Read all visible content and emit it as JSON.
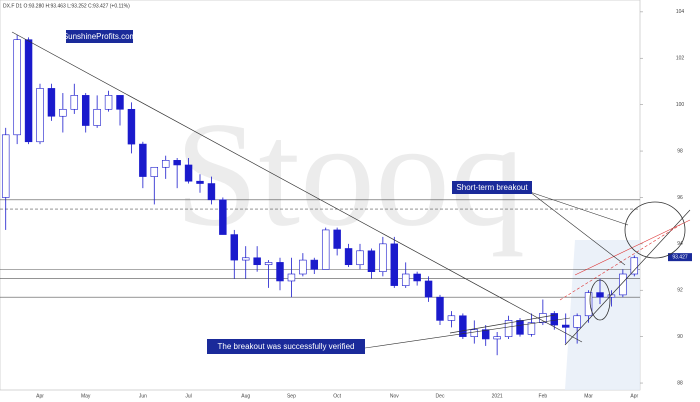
{
  "chart_data": {
    "type": "candlestick",
    "title": "DX.F D1 O:93.280 H:93.463 L:93.252 C:93.427 (+0.11%)",
    "watermark": "Stooq",
    "annotations": [
      "SunshineProfits.com",
      "Short-term breakout",
      "The breakout was successfully verified"
    ],
    "categories": [
      null,
      null,
      null,
      "Apr",
      null,
      null,
      null,
      "May",
      null,
      null,
      null,
      null,
      "Jun",
      null,
      null,
      null,
      "Jul",
      null,
      null,
      null,
      null,
      "Aug",
      null,
      null,
      null,
      "Sep",
      null,
      null,
      null,
      "Oct",
      null,
      null,
      null,
      null,
      "Nov",
      null,
      null,
      null,
      "Dec",
      null,
      null,
      null,
      null,
      "2021",
      null,
      null,
      null,
      "Feb",
      null,
      null,
      null,
      "Mar",
      null,
      null,
      null,
      "Apr"
    ],
    "open": [
      96.0,
      98.7,
      102.8,
      98.4,
      100.7,
      99.5,
      99.8,
      100.4,
      99.1,
      99.8,
      100.4,
      99.8,
      98.3,
      96.9,
      97.3,
      97.6,
      97.4,
      96.7,
      96.6,
      95.9,
      94.4,
      93.3,
      93.4,
      93.1,
      93.2,
      92.4,
      92.7,
      93.3,
      92.9,
      94.6,
      93.8,
      93.1,
      93.7,
      92.8,
      94.0,
      92.2,
      92.7,
      92.4,
      91.7,
      90.7,
      90.9,
      90.0,
      90.3,
      89.9,
      90.0,
      90.7,
      90.1,
      90.6,
      91.0,
      90.5,
      90.4,
      90.9,
      91.9,
      91.7,
      91.8,
      92.7
    ],
    "high": [
      99.0,
      103.0,
      102.9,
      100.9,
      100.9,
      100.5,
      100.9,
      100.5,
      100.4,
      100.6,
      100.4,
      100.1,
      98.4,
      97.3,
      97.8,
      97.7,
      97.7,
      97.0,
      96.9,
      96.0,
      94.6,
      93.9,
      93.9,
      93.3,
      93.4,
      93.4,
      93.6,
      93.4,
      94.7,
      94.7,
      94.0,
      94.0,
      93.8,
      94.3,
      94.3,
      93.2,
      92.8,
      92.6,
      91.8,
      91.1,
      91.0,
      90.7,
      90.5,
      90.2,
      90.9,
      90.8,
      91.0,
      91.6,
      91.1,
      91.0,
      91.0,
      92.0,
      92.5,
      92.0,
      92.9,
      93.5
    ],
    "low": [
      94.6,
      98.3,
      98.3,
      98.3,
      99.3,
      98.8,
      99.6,
      98.8,
      99.0,
      99.7,
      99.1,
      97.9,
      96.4,
      95.7,
      96.8,
      96.4,
      96.6,
      96.2,
      95.7,
      94.4,
      92.5,
      92.5,
      92.8,
      92.1,
      92.0,
      91.7,
      92.6,
      92.7,
      92.9,
      93.5,
      93.0,
      92.9,
      92.5,
      92.6,
      92.1,
      92.1,
      92.2,
      91.5,
      90.5,
      90.4,
      89.9,
      89.7,
      89.6,
      89.2,
      89.9,
      90.0,
      90.0,
      90.5,
      90.3,
      89.7,
      89.7,
      90.6,
      91.4,
      91.3,
      91.7,
      92.6
    ],
    "close": [
      98.7,
      102.8,
      98.4,
      100.7,
      99.5,
      99.8,
      100.4,
      99.1,
      99.8,
      100.4,
      99.8,
      98.3,
      96.9,
      97.3,
      97.6,
      97.4,
      96.7,
      96.6,
      95.9,
      94.4,
      93.3,
      93.4,
      93.1,
      93.2,
      92.4,
      92.7,
      93.3,
      92.9,
      94.6,
      93.8,
      93.1,
      93.7,
      92.8,
      94.0,
      92.2,
      92.7,
      92.4,
      91.7,
      90.7,
      90.9,
      90.0,
      90.3,
      89.9,
      90.0,
      90.7,
      90.1,
      90.6,
      91.0,
      90.5,
      90.4,
      90.9,
      91.9,
      91.7,
      91.8,
      92.7,
      93.4
    ],
    "color": "#1a1acc",
    "last_price": 93.427,
    "ylim": [
      87.7,
      104.08
    ],
    "yticks": [
      88,
      90,
      92,
      94,
      96,
      98,
      100,
      102,
      104
    ],
    "levels": [
      {
        "value": 95.9,
        "style": "solid"
      },
      {
        "value": 95.5,
        "style": "dashed"
      },
      {
        "value": 92.9,
        "style": "solid"
      },
      {
        "value": 92.5,
        "style": "solid"
      },
      {
        "value": 91.7,
        "style": "solid"
      }
    ]
  }
}
